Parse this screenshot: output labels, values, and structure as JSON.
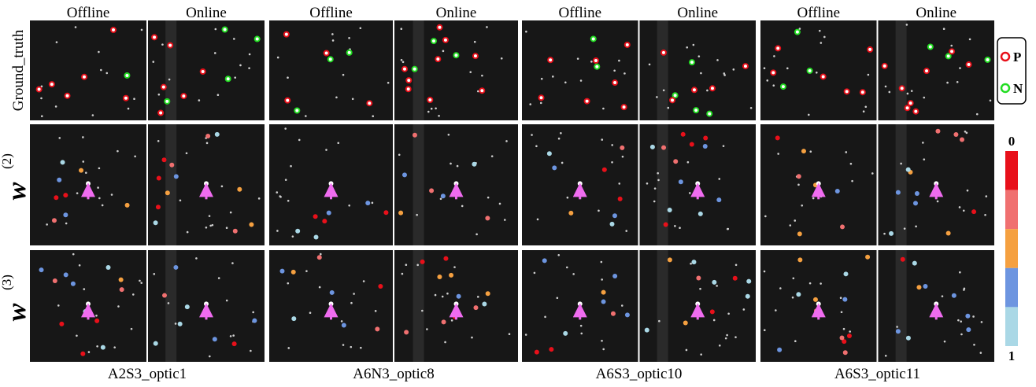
{
  "groups": [
    {
      "name": "A2S3_optic1",
      "columns": [
        "Offline",
        "Online"
      ]
    },
    {
      "name": "A6N3_optic8",
      "columns": [
        "Offline",
        "Online"
      ]
    },
    {
      "name": "A6S3_optic10",
      "columns": [
        "Offline",
        "Online"
      ]
    },
    {
      "name": "A6S3_optic11",
      "columns": [
        "Offline",
        "Online"
      ]
    }
  ],
  "rows": [
    {
      "label": "Ground_truth"
    },
    {
      "label": "w",
      "sup": "(2)"
    },
    {
      "label": "w",
      "sup": "(3)"
    }
  ],
  "legend": [
    "P",
    "N"
  ],
  "colorbar": {
    "top": 0,
    "bottom": 1
  }
}
